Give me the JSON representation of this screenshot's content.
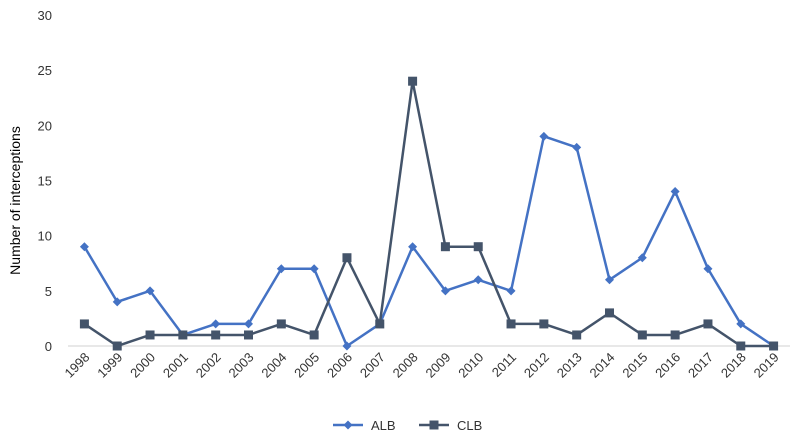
{
  "chart_data": {
    "type": "line",
    "title": "",
    "xlabel": "",
    "ylabel": "Number of interceptions",
    "categories": [
      "1998",
      "1999",
      "2000",
      "2001",
      "2002",
      "2003",
      "2004",
      "2005",
      "2006",
      "2007",
      "2008",
      "2009",
      "2010",
      "2011",
      "2012",
      "2013",
      "2014",
      "2015",
      "2016",
      "2017",
      "2018",
      "2019"
    ],
    "y_ticks": [
      0,
      5,
      10,
      15,
      20,
      25,
      30
    ],
    "ylim": [
      0,
      30
    ],
    "grid": false,
    "legend_position": "bottom",
    "series": [
      {
        "name": "ALB",
        "color": "#4472C4",
        "marker": "diamond",
        "values": [
          9,
          4,
          5,
          1,
          2,
          2,
          7,
          7,
          0,
          2,
          9,
          5,
          6,
          5,
          19,
          18,
          6,
          8,
          14,
          7,
          2,
          0
        ]
      },
      {
        "name": "CLB",
        "color": "#44546A",
        "marker": "square",
        "values": [
          2,
          0,
          1,
          1,
          1,
          1,
          2,
          1,
          8,
          2,
          24,
          9,
          9,
          2,
          2,
          1,
          3,
          1,
          1,
          2,
          0,
          0
        ]
      }
    ]
  }
}
